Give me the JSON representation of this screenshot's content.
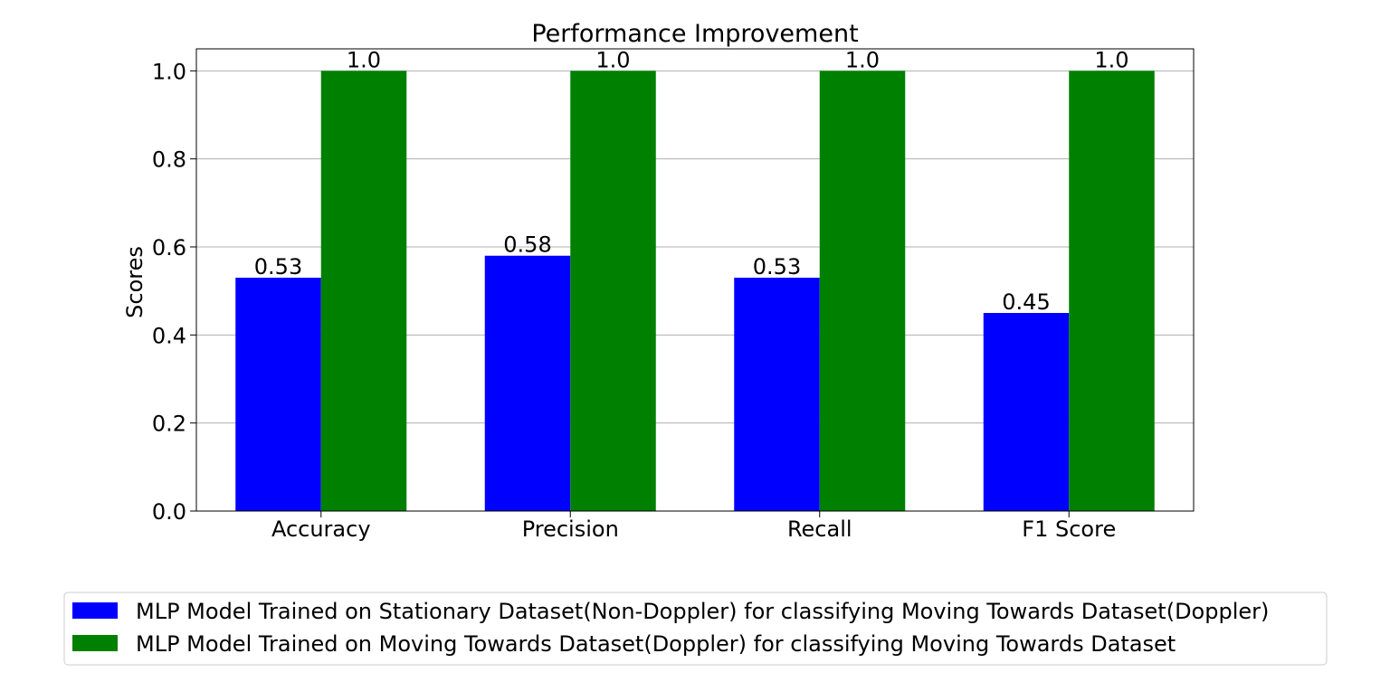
{
  "chart_data": {
    "type": "bar",
    "title": "Performance Improvement",
    "xlabel": "",
    "ylabel": "Scores",
    "categories": [
      "Accuracy",
      "Precision",
      "Recall",
      "F1 Score"
    ],
    "series": [
      {
        "name": "MLP Model Trained on Stationary Dataset(Non-Doppler) for classifying Moving Towards Dataset(Doppler)",
        "color": "#0000ff",
        "values": [
          0.53,
          0.58,
          0.53,
          0.45
        ],
        "value_labels": [
          "0.53",
          "0.58",
          "0.53",
          "0.45"
        ]
      },
      {
        "name": "MLP Model Trained on Moving Towards Dataset(Doppler) for classifying Moving Towards Dataset",
        "color": "#008000",
        "values": [
          1.0,
          1.0,
          1.0,
          1.0
        ],
        "value_labels": [
          "1.0",
          "1.0",
          "1.0",
          "1.0"
        ]
      }
    ],
    "ylim": [
      0,
      1.05
    ],
    "yticks": [
      0.0,
      0.2,
      0.4,
      0.6,
      0.8,
      1.0
    ],
    "ytick_labels": [
      "0.0",
      "0.2",
      "0.4",
      "0.6",
      "0.8",
      "1.0"
    ],
    "grid": "y",
    "legend": "bottom-center"
  }
}
